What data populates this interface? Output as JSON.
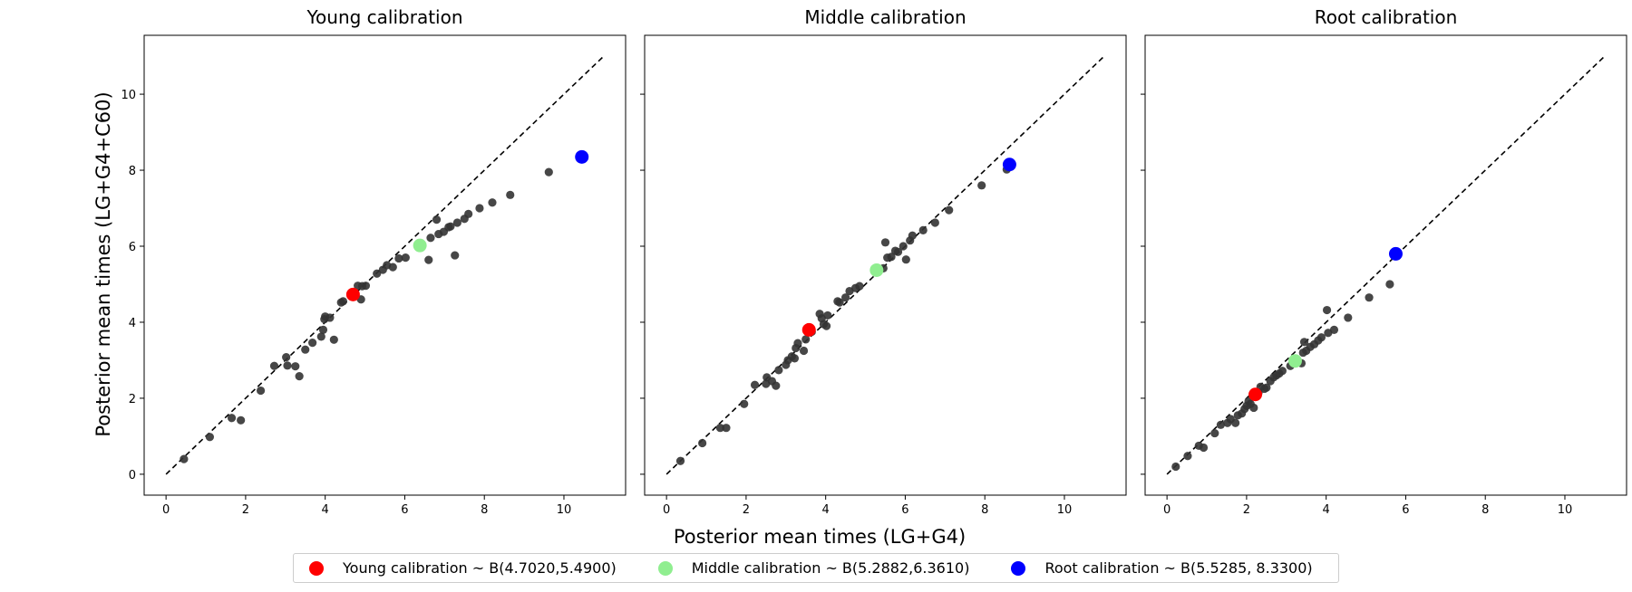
{
  "x_axis_label": "Posterior mean times (LG+G4)",
  "y_axis_label": "Posterior mean times (LG+G4+C60)",
  "chart_data": [
    {
      "type": "scatter",
      "title": "Young calibration",
      "xlim": [
        -0.55,
        11.55
      ],
      "ylim": [
        -0.55,
        11.55
      ],
      "x_ticks": [
        0,
        2,
        4,
        6,
        8,
        10
      ],
      "y_ticks": [
        0,
        2,
        4,
        6,
        8,
        10
      ],
      "reference_line": {
        "x": [
          0,
          11
        ],
        "y": [
          0,
          11
        ],
        "style": "dashed"
      },
      "grid": false,
      "series": [
        {
          "color": "#333333",
          "points": [
            [
              0.45,
              0.4
            ],
            [
              1.1,
              0.98
            ],
            [
              1.65,
              1.48
            ],
            [
              1.88,
              1.42
            ],
            [
              2.38,
              2.2
            ],
            [
              2.72,
              2.85
            ],
            [
              3.02,
              3.08
            ],
            [
              3.05,
              2.86
            ],
            [
              3.25,
              2.84
            ],
            [
              3.35,
              2.58
            ],
            [
              3.5,
              3.28
            ],
            [
              3.68,
              3.46
            ],
            [
              3.9,
              3.62
            ],
            [
              3.95,
              3.8
            ],
            [
              3.98,
              4.08
            ],
            [
              4.0,
              4.15
            ],
            [
              4.12,
              4.12
            ],
            [
              4.22,
              3.54
            ],
            [
              4.4,
              4.52
            ],
            [
              4.45,
              4.55
            ],
            [
              4.72,
              4.76
            ],
            [
              4.82,
              4.96
            ],
            [
              4.9,
              4.6
            ],
            [
              4.93,
              4.95
            ],
            [
              5.02,
              4.96
            ],
            [
              5.3,
              5.28
            ],
            [
              5.45,
              5.38
            ],
            [
              5.55,
              5.5
            ],
            [
              5.7,
              5.45
            ],
            [
              5.85,
              5.68
            ],
            [
              6.02,
              5.7
            ],
            [
              6.6,
              5.64
            ],
            [
              6.65,
              6.22
            ],
            [
              6.8,
              6.7
            ],
            [
              6.85,
              6.32
            ],
            [
              6.98,
              6.38
            ],
            [
              7.1,
              6.5
            ],
            [
              7.15,
              6.52
            ],
            [
              7.26,
              5.76
            ],
            [
              7.32,
              6.62
            ],
            [
              7.5,
              6.72
            ],
            [
              7.6,
              6.85
            ],
            [
              7.88,
              7.0
            ],
            [
              8.2,
              7.15
            ],
            [
              8.65,
              7.35
            ],
            [
              9.62,
              7.95
            ]
          ]
        },
        {
          "name": "Young calibration ~ B(4.7020,5.4900)",
          "color": "#ff0000",
          "points": [
            [
              4.7,
              4.73
            ]
          ]
        },
        {
          "name": "Middle calibration ~ B(5.2882,6.3610)",
          "color": "#90ee90",
          "points": [
            [
              6.38,
              6.02
            ]
          ]
        },
        {
          "name": "Root calibration ~ B(5.5285, 8.3300)",
          "color": "#0000ff",
          "points": [
            [
              10.45,
              8.35
            ]
          ]
        }
      ]
    },
    {
      "type": "scatter",
      "title": "Middle calibration",
      "xlim": [
        -0.55,
        11.55
      ],
      "ylim": [
        -0.55,
        11.55
      ],
      "x_ticks": [
        0,
        2,
        4,
        6,
        8,
        10
      ],
      "y_ticks": [
        0,
        2,
        4,
        6,
        8,
        10
      ],
      "reference_line": {
        "x": [
          0,
          11
        ],
        "y": [
          0,
          11
        ],
        "style": "dashed"
      },
      "grid": false,
      "series": [
        {
          "color": "#333333",
          "points": [
            [
              0.35,
              0.35
            ],
            [
              0.9,
              0.82
            ],
            [
              1.35,
              1.22
            ],
            [
              1.5,
              1.22
            ],
            [
              1.95,
              1.85
            ],
            [
              2.22,
              2.35
            ],
            [
              2.5,
              2.38
            ],
            [
              2.52,
              2.55
            ],
            [
              2.65,
              2.45
            ],
            [
              2.75,
              2.33
            ],
            [
              2.82,
              2.74
            ],
            [
              3.0,
              2.88
            ],
            [
              3.05,
              3.0
            ],
            [
              3.15,
              3.1
            ],
            [
              3.22,
              3.05
            ],
            [
              3.25,
              3.32
            ],
            [
              3.3,
              3.45
            ],
            [
              3.45,
              3.25
            ],
            [
              3.5,
              3.55
            ],
            [
              3.65,
              3.75
            ],
            [
              3.85,
              4.22
            ],
            [
              3.9,
              4.1
            ],
            [
              3.95,
              3.95
            ],
            [
              4.02,
              3.9
            ],
            [
              4.05,
              4.18
            ],
            [
              4.3,
              4.55
            ],
            [
              4.35,
              4.52
            ],
            [
              4.5,
              4.65
            ],
            [
              4.6,
              4.82
            ],
            [
              4.75,
              4.9
            ],
            [
              4.85,
              4.95
            ],
            [
              5.35,
              5.4
            ],
            [
              5.45,
              5.42
            ],
            [
              5.5,
              6.1
            ],
            [
              5.55,
              5.7
            ],
            [
              5.65,
              5.72
            ],
            [
              5.75,
              5.88
            ],
            [
              5.82,
              5.85
            ],
            [
              5.95,
              6.0
            ],
            [
              6.02,
              5.65
            ],
            [
              6.12,
              6.15
            ],
            [
              6.18,
              6.28
            ],
            [
              6.45,
              6.42
            ],
            [
              6.75,
              6.62
            ],
            [
              7.1,
              6.95
            ],
            [
              7.92,
              7.6
            ],
            [
              8.55,
              8.02
            ]
          ]
        },
        {
          "name": "Young calibration ~ B(4.7020,5.4900)",
          "color": "#ff0000",
          "points": [
            [
              3.58,
              3.8
            ]
          ]
        },
        {
          "name": "Middle calibration ~ B(5.2882,6.3610)",
          "color": "#90ee90",
          "points": [
            [
              5.28,
              5.37
            ]
          ]
        },
        {
          "name": "Root calibration ~ B(5.5285, 8.3300)",
          "color": "#0000ff",
          "points": [
            [
              8.62,
              8.15
            ]
          ]
        }
      ]
    },
    {
      "type": "scatter",
      "title": "Root calibration",
      "xlim": [
        -0.55,
        11.55
      ],
      "ylim": [
        -0.55,
        11.55
      ],
      "x_ticks": [
        0,
        2,
        4,
        6,
        8,
        10
      ],
      "y_ticks": [
        0,
        2,
        4,
        6,
        8,
        10
      ],
      "reference_line": {
        "x": [
          0,
          11
        ],
        "y": [
          0,
          11
        ],
        "style": "dashed"
      },
      "grid": false,
      "series": [
        {
          "color": "#333333",
          "points": [
            [
              0.22,
              0.2
            ],
            [
              0.52,
              0.48
            ],
            [
              0.8,
              0.75
            ],
            [
              0.92,
              0.7
            ],
            [
              1.2,
              1.08
            ],
            [
              1.35,
              1.3
            ],
            [
              1.52,
              1.35
            ],
            [
              1.6,
              1.45
            ],
            [
              1.72,
              1.35
            ],
            [
              1.78,
              1.55
            ],
            [
              1.88,
              1.6
            ],
            [
              1.95,
              1.72
            ],
            [
              2.0,
              1.8
            ],
            [
              2.05,
              1.92
            ],
            [
              2.1,
              1.85
            ],
            [
              2.18,
              1.75
            ],
            [
              2.22,
              2.05
            ],
            [
              2.3,
              2.15
            ],
            [
              2.35,
              2.3
            ],
            [
              2.45,
              2.25
            ],
            [
              2.5,
              2.28
            ],
            [
              2.6,
              2.45
            ],
            [
              2.68,
              2.55
            ],
            [
              2.75,
              2.6
            ],
            [
              2.82,
              2.65
            ],
            [
              2.9,
              2.72
            ],
            [
              3.1,
              2.85
            ],
            [
              3.2,
              3.0
            ],
            [
              3.38,
              2.92
            ],
            [
              3.42,
              3.2
            ],
            [
              3.45,
              3.48
            ],
            [
              3.5,
              3.25
            ],
            [
              3.6,
              3.35
            ],
            [
              3.7,
              3.42
            ],
            [
              3.8,
              3.52
            ],
            [
              3.88,
              3.6
            ],
            [
              4.02,
              4.32
            ],
            [
              4.05,
              3.72
            ],
            [
              4.2,
              3.8
            ],
            [
              4.55,
              4.12
            ],
            [
              5.08,
              4.65
            ],
            [
              5.6,
              5.0
            ]
          ]
        },
        {
          "name": "Young calibration ~ B(4.7020,5.4900)",
          "color": "#ff0000",
          "points": [
            [
              2.22,
              2.1
            ]
          ]
        },
        {
          "name": "Middle calibration ~ B(5.2882,6.3610)",
          "color": "#90ee90",
          "points": [
            [
              3.22,
              2.98
            ]
          ]
        },
        {
          "name": "Root calibration ~ B(5.5285, 8.3300)",
          "color": "#0000ff",
          "points": [
            [
              5.75,
              5.8
            ]
          ]
        }
      ]
    }
  ],
  "legend": {
    "placement": "bottom-center",
    "entries": [
      {
        "label": "Young calibration ~ B(4.7020,5.4900)",
        "color": "#ff0000"
      },
      {
        "label": "Middle calibration ~ B(5.2882,6.3610)",
        "color": "#90ee90"
      },
      {
        "label": "Root calibration ~ B(5.5285, 8.3300)",
        "color": "#0000ff"
      }
    ]
  }
}
